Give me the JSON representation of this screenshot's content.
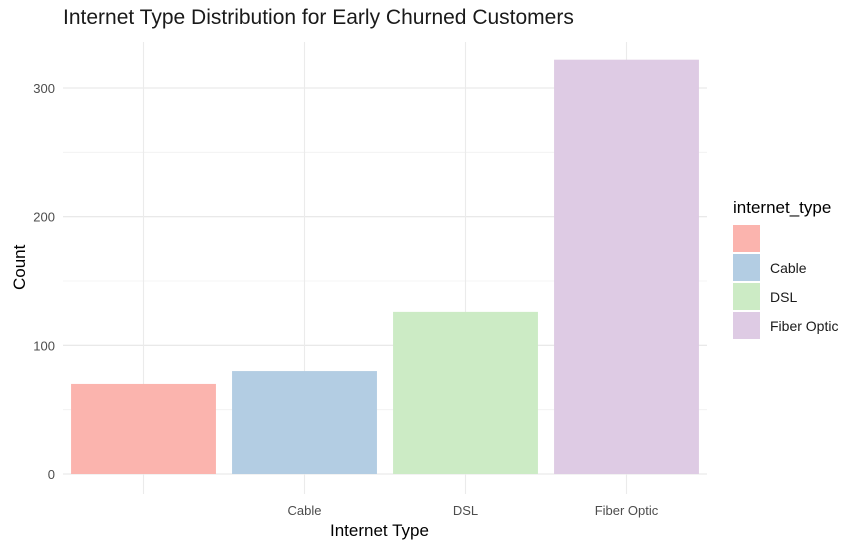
{
  "chart_data": {
    "type": "bar",
    "title": "Internet Type Distribution for Early Churned Customers",
    "xlabel": "Internet Type",
    "ylabel": "Count",
    "categories": [
      "",
      "Cable",
      "DSL",
      "Fiber Optic"
    ],
    "values": [
      70,
      80,
      126,
      322
    ],
    "colors": [
      "#FBB4AE",
      "#B3CDE3",
      "#CCEBC5",
      "#DECBE4"
    ],
    "ylim": [
      0,
      332
    ],
    "yticks": [
      0,
      100,
      200,
      300
    ],
    "grid": true,
    "legend": {
      "title": "internet_type",
      "position": "right",
      "entries": [
        "",
        "Cable",
        "DSL",
        "Fiber Optic"
      ]
    }
  }
}
